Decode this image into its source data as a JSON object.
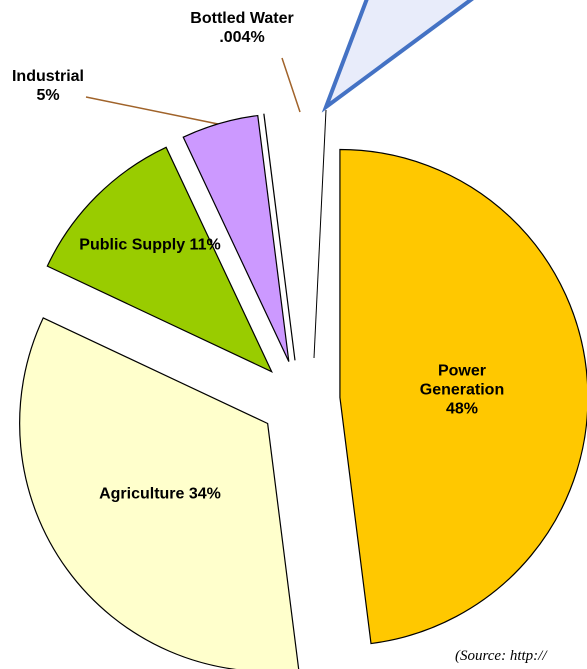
{
  "chart_data": {
    "type": "pie",
    "categories": [
      "Power Generation",
      "Agriculture",
      "Public Supply",
      "Industrial",
      "Bottled Water"
    ],
    "values": [
      48,
      34,
      11,
      5,
      0.004
    ],
    "value_labels": [
      "48%",
      "34%",
      "11%",
      "5%",
      ".004%"
    ],
    "colors": [
      "#FFC800",
      "#FFFFCC",
      "#99CC00",
      "#CC99FF",
      "#FF6600"
    ],
    "source": "(Source: http://"
  }
}
